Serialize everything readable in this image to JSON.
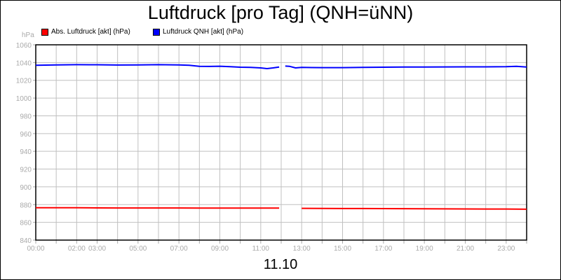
{
  "chart_data": {
    "type": "line",
    "title": "Luftdruck [pro Tag] (QNH=üNN)",
    "xlabel": "11.10",
    "ylabel": "hPa",
    "ylim": [
      840,
      1060
    ],
    "yticks": [
      840,
      860,
      880,
      900,
      920,
      940,
      960,
      980,
      1000,
      1020,
      1040,
      1060
    ],
    "xlim_hours": [
      0,
      24
    ],
    "xtick_labels": [
      {
        "h": 0,
        "label": "00:00"
      },
      {
        "h": 2,
        "label": "02:00"
      },
      {
        "h": 3,
        "label": "03:00"
      },
      {
        "h": 5,
        "label": "05:00"
      },
      {
        "h": 7,
        "label": "07:00"
      },
      {
        "h": 9,
        "label": "09:00"
      },
      {
        "h": 11,
        "label": "11:00"
      },
      {
        "h": 13,
        "label": "13:00"
      },
      {
        "h": 15,
        "label": "15:00"
      },
      {
        "h": 17,
        "label": "17:00"
      },
      {
        "h": 19,
        "label": "19:00"
      },
      {
        "h": 21,
        "label": "21:00"
      },
      {
        "h": 23,
        "label": "23:00"
      }
    ],
    "grid": true,
    "legend_position": "top-left",
    "series": [
      {
        "name": "Abs. Luftdruck [akt] (hPa)",
        "color": "#ff0000",
        "x": [
          0,
          1,
          2,
          3,
          4,
          5,
          6,
          7,
          8,
          9,
          10,
          11,
          11.9,
          12.1,
          13,
          14,
          15,
          16,
          17,
          18,
          19,
          20,
          21,
          22,
          23,
          24
        ],
        "y": [
          876.5,
          876.5,
          876.5,
          876.3,
          876.2,
          876.2,
          876.2,
          876.2,
          876,
          876,
          876,
          876,
          876,
          null,
          875.8,
          875.7,
          875.6,
          875.6,
          875.5,
          875.4,
          875.3,
          875.2,
          875.1,
          875,
          875,
          874.8
        ]
      },
      {
        "name": "Luftdruck QNH [akt] (hPa)",
        "color": "#0000ff",
        "x": [
          0,
          1,
          2,
          3,
          4,
          5,
          6,
          7,
          7.5,
          8,
          8.5,
          9,
          9.5,
          10,
          10.5,
          11,
          11.3,
          11.6,
          11.9,
          12.1,
          12.2,
          12.4,
          12.7,
          13,
          13.5,
          14,
          15,
          16,
          17,
          18,
          19,
          20,
          21,
          22,
          23,
          23.5,
          24
        ],
        "y": [
          1037,
          1037.3,
          1037.6,
          1037.5,
          1037.2,
          1037.3,
          1037.6,
          1037.4,
          1037,
          1035.8,
          1035.6,
          1035.9,
          1035.3,
          1034.8,
          1034.5,
          1034,
          1033.2,
          1034,
          1035,
          null,
          1036,
          1035.8,
          1034,
          1034.6,
          1034.4,
          1034.3,
          1034.3,
          1034.5,
          1034.8,
          1034.9,
          1035,
          1035.1,
          1035.2,
          1035.2,
          1035.3,
          1035.8,
          1035
        ]
      }
    ]
  }
}
